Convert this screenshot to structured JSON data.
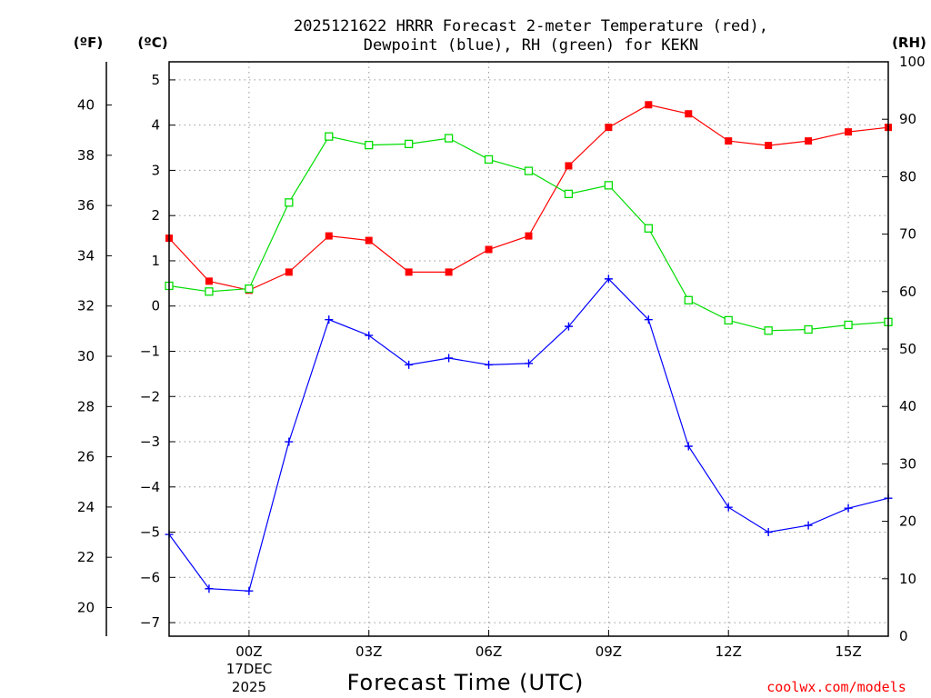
{
  "chart_data": {
    "type": "line",
    "title_line1": "2025121622 HRRR Forecast 2-meter Temperature (red),",
    "title_line2": "Dewpoint (blue), RH (green) for KEKN",
    "left_outer_unit": "(ºF)",
    "left_inner_unit": "(ºC)",
    "right_unit": "(RH)",
    "xlabel": "Forecast Time (UTC)",
    "credit": "coolwx.com/models",
    "x_range": [
      -2,
      16
    ],
    "x_ticks": [
      {
        "x": 0,
        "label": "00Z"
      },
      {
        "x": 3,
        "label": "03Z"
      },
      {
        "x": 6,
        "label": "06Z"
      },
      {
        "x": 9,
        "label": "09Z"
      },
      {
        "x": 12,
        "label": "12Z"
      },
      {
        "x": 15,
        "label": "15Z"
      }
    ],
    "date_line1": "17DEC",
    "date_line2": "2025",
    "celsius_range": [
      -7.3,
      5.4
    ],
    "celsius_ticks": [
      -7,
      -6,
      -5,
      -4,
      -3,
      -2,
      -1,
      0,
      1,
      2,
      3,
      4,
      5
    ],
    "fahrenheit_ticks": [
      20,
      22,
      24,
      26,
      28,
      30,
      32,
      34,
      36,
      38,
      40
    ],
    "rh_range": [
      0,
      100
    ],
    "rh_ticks": [
      0,
      10,
      20,
      30,
      40,
      50,
      60,
      70,
      80,
      90,
      100
    ],
    "hours": [
      -2,
      -1,
      0,
      1,
      2,
      3,
      4,
      5,
      6,
      7,
      8,
      9,
      10,
      11,
      12,
      13,
      14,
      15,
      16
    ],
    "series": [
      {
        "name": "Temperature",
        "color": "#ff0000",
        "axis": "celsius",
        "marker": "filled-square",
        "values": [
          1.5,
          0.55,
          0.35,
          0.75,
          1.55,
          1.45,
          0.75,
          0.75,
          1.25,
          1.55,
          3.1,
          3.95,
          4.45,
          4.25,
          3.65,
          3.55,
          3.65,
          3.85,
          3.95
        ]
      },
      {
        "name": "Dewpoint",
        "color": "#0000ff",
        "axis": "celsius",
        "marker": "plus",
        "values": [
          -5.05,
          -6.25,
          -6.3,
          -3.0,
          -0.3,
          -0.65,
          -1.3,
          -1.15,
          -1.3,
          -1.27,
          -0.45,
          0.6,
          -0.3,
          -3.1,
          -4.45,
          -5.0,
          -4.85,
          -4.47,
          -4.25
        ]
      },
      {
        "name": "RH",
        "color": "#00dd00",
        "axis": "rh",
        "marker": "open-square",
        "values": [
          61,
          60,
          60.5,
          75.5,
          87,
          85.5,
          85.7,
          86.7,
          83,
          81,
          77,
          78.5,
          71,
          58.5,
          55,
          53.2,
          53.4,
          54.2,
          54.7
        ]
      }
    ]
  }
}
